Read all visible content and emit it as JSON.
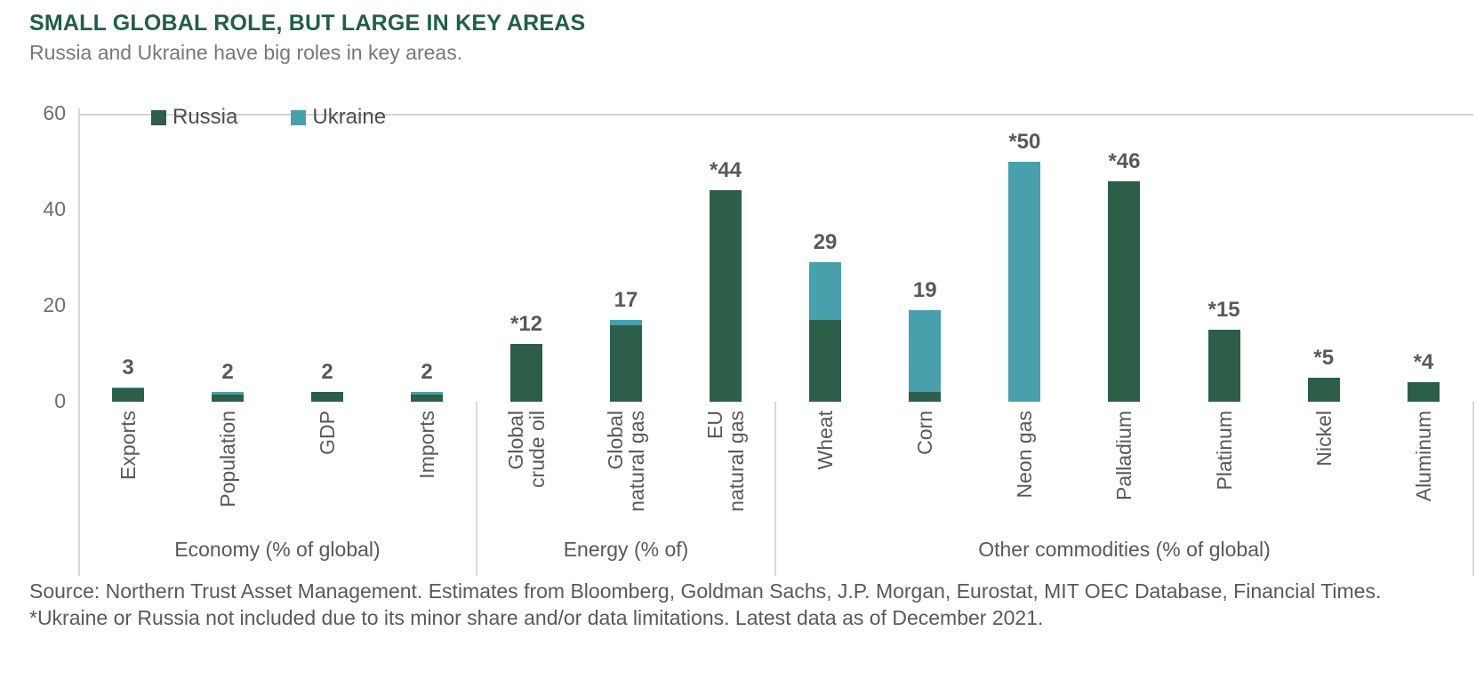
{
  "header": {
    "title": "SMALL GLOBAL ROLE, BUT LARGE IN KEY AREAS",
    "subtitle": "Russia and Ukraine have big roles in key areas."
  },
  "footer": {
    "source": "Source: Northern Trust Asset Management. Estimates from Bloomberg, Goldman Sachs, J.P. Morgan, Eurostat, MIT OEC Database, Financial Times. *Ukraine or Russia not included due to its minor share and/or data limitations. Latest data as of December 2021."
  },
  "colors": {
    "russia": "#2D5E4A",
    "ukraine": "#47A0AB",
    "title_green": "#1F5F46",
    "text_gray": "#58595B",
    "axis_gray": "#D9D9D9"
  },
  "chart_data": {
    "type": "bar",
    "stacked": true,
    "legend_position": "top-left",
    "legend": [
      {
        "name": "Russia",
        "color": "#2D5E4A"
      },
      {
        "name": "Ukraine",
        "color": "#47A0AB"
      }
    ],
    "y_axis": {
      "ticks": [
        0,
        20,
        40,
        60
      ],
      "max": 60,
      "grid": false
    },
    "groups": [
      {
        "label": "Economy (% of global)",
        "bars": [
          {
            "category": "Exports",
            "value_label": "3",
            "total": 3,
            "russia": 2.7,
            "ukraine": 0.3
          },
          {
            "category": "Population",
            "value_label": "2",
            "total": 2,
            "russia": 1.5,
            "ukraine": 0.5
          },
          {
            "category": "GDP",
            "value_label": "2",
            "total": 2,
            "russia": 2,
            "ukraine": 0
          },
          {
            "category": "Imports",
            "value_label": "2",
            "total": 2,
            "russia": 1.5,
            "ukraine": 0.5
          }
        ]
      },
      {
        "label": "Energy (% of)",
        "bars": [
          {
            "category": "Global\ncrude oil",
            "value_label": "*12",
            "total": 12,
            "russia": 12,
            "ukraine": 0
          },
          {
            "category": "Global\nnatural gas",
            "value_label": "17",
            "total": 17,
            "russia": 16,
            "ukraine": 1
          },
          {
            "category": "EU\nnatural gas",
            "value_label": "*44",
            "total": 44,
            "russia": 44,
            "ukraine": 0
          }
        ]
      },
      {
        "label": "Other commodities (% of global)",
        "bars": [
          {
            "category": "Wheat",
            "value_label": "29",
            "total": 29,
            "russia": 17,
            "ukraine": 12
          },
          {
            "category": "Corn",
            "value_label": "19",
            "total": 19,
            "russia": 2,
            "ukraine": 17
          },
          {
            "category": "Neon gas",
            "value_label": "*50",
            "total": 50,
            "russia": 0,
            "ukraine": 50
          },
          {
            "category": "Palladium",
            "value_label": "*46",
            "total": 46,
            "russia": 46,
            "ukraine": 0
          },
          {
            "category": "Platinum",
            "value_label": "*15",
            "total": 15,
            "russia": 15,
            "ukraine": 0
          },
          {
            "category": "Nickel",
            "value_label": "*5",
            "total": 5,
            "russia": 5,
            "ukraine": 0
          },
          {
            "category": "Aluminum",
            "value_label": "*4",
            "total": 4,
            "russia": 4,
            "ukraine": 0
          }
        ]
      }
    ]
  }
}
